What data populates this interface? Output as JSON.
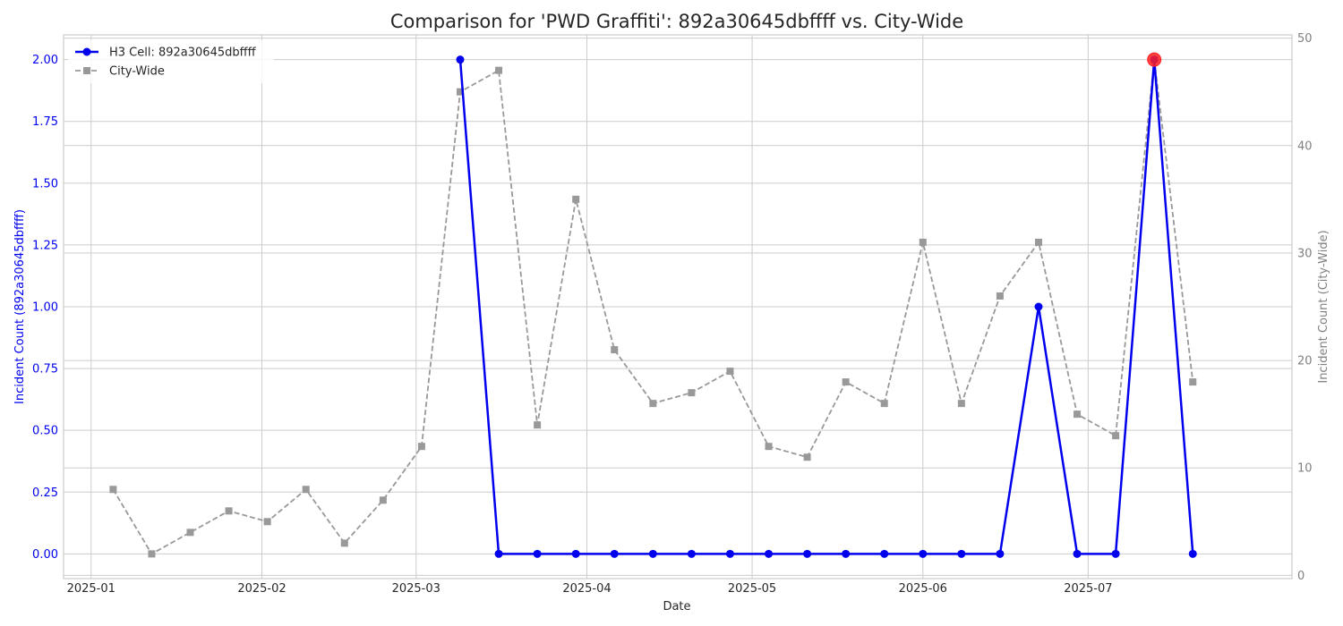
{
  "chart_data": {
    "type": "line",
    "title": "Comparison for 'PWD Graffiti': 892a30645dbffff vs. City-Wide",
    "xlabel": "Date",
    "ylabel_left": "Incident Count (892a30645dbffff)",
    "ylabel_right": "Incident Count (City-Wide)",
    "x_tick_labels": [
      "2025-01",
      "2025-02",
      "2025-03",
      "2025-04",
      "2025-05",
      "2025-06",
      "2025-07"
    ],
    "x_ticks": [
      "2025-01-01",
      "2025-02-01",
      "2025-03-01",
      "2025-04-01",
      "2025-05-01",
      "2025-06-01",
      "2025-07-01"
    ],
    "xlim": [
      "2024-12-27",
      "2025-08-07"
    ],
    "ylim_left": [
      -0.1,
      2.1
    ],
    "ylim_right": [
      -0.3,
      50.3
    ],
    "y_ticks_left": [
      "0.00",
      "0.25",
      "0.50",
      "0.75",
      "1.00",
      "1.25",
      "1.50",
      "1.75",
      "2.00"
    ],
    "y_ticks_right": [
      "0",
      "10",
      "20",
      "30",
      "40",
      "50"
    ],
    "legend_position": "top-left",
    "grid": true,
    "series": [
      {
        "name": "H3 Cell: 892a30645dbffff",
        "axis": "left",
        "color": "#0000ee",
        "marker": "circle",
        "linestyle": "solid",
        "x": [
          "2025-03-09",
          "2025-03-16",
          "2025-03-23",
          "2025-03-30",
          "2025-04-06",
          "2025-04-13",
          "2025-04-20",
          "2025-04-27",
          "2025-05-04",
          "2025-05-11",
          "2025-05-18",
          "2025-05-25",
          "2025-06-01",
          "2025-06-08",
          "2025-06-15",
          "2025-06-22",
          "2025-06-29",
          "2025-07-06",
          "2025-07-13",
          "2025-07-20"
        ],
        "values": [
          2,
          0,
          0,
          0,
          0,
          0,
          0,
          0,
          0,
          0,
          0,
          0,
          0,
          0,
          0,
          1,
          0,
          0,
          2,
          0
        ]
      },
      {
        "name": "City-Wide",
        "axis": "right",
        "color": "#999999",
        "marker": "square",
        "linestyle": "dashed",
        "x": [
          "2025-01-05",
          "2025-01-12",
          "2025-01-19",
          "2025-01-26",
          "2025-02-02",
          "2025-02-09",
          "2025-02-16",
          "2025-02-23",
          "2025-03-02",
          "2025-03-09",
          "2025-03-16",
          "2025-03-23",
          "2025-03-30",
          "2025-04-06",
          "2025-04-13",
          "2025-04-20",
          "2025-04-27",
          "2025-05-04",
          "2025-05-11",
          "2025-05-18",
          "2025-05-25",
          "2025-06-01",
          "2025-06-08",
          "2025-06-15",
          "2025-06-22",
          "2025-06-29",
          "2025-07-06",
          "2025-07-13",
          "2025-07-20"
        ],
        "values": [
          8,
          2,
          4,
          6,
          5,
          8,
          3,
          7,
          12,
          45,
          47,
          14,
          35,
          21,
          16,
          17,
          19,
          12,
          11,
          18,
          16,
          31,
          16,
          26,
          31,
          15,
          13,
          48,
          18
        ]
      }
    ],
    "highlight": {
      "x": "2025-07-13",
      "value": 2,
      "color": "#ff2020"
    }
  }
}
